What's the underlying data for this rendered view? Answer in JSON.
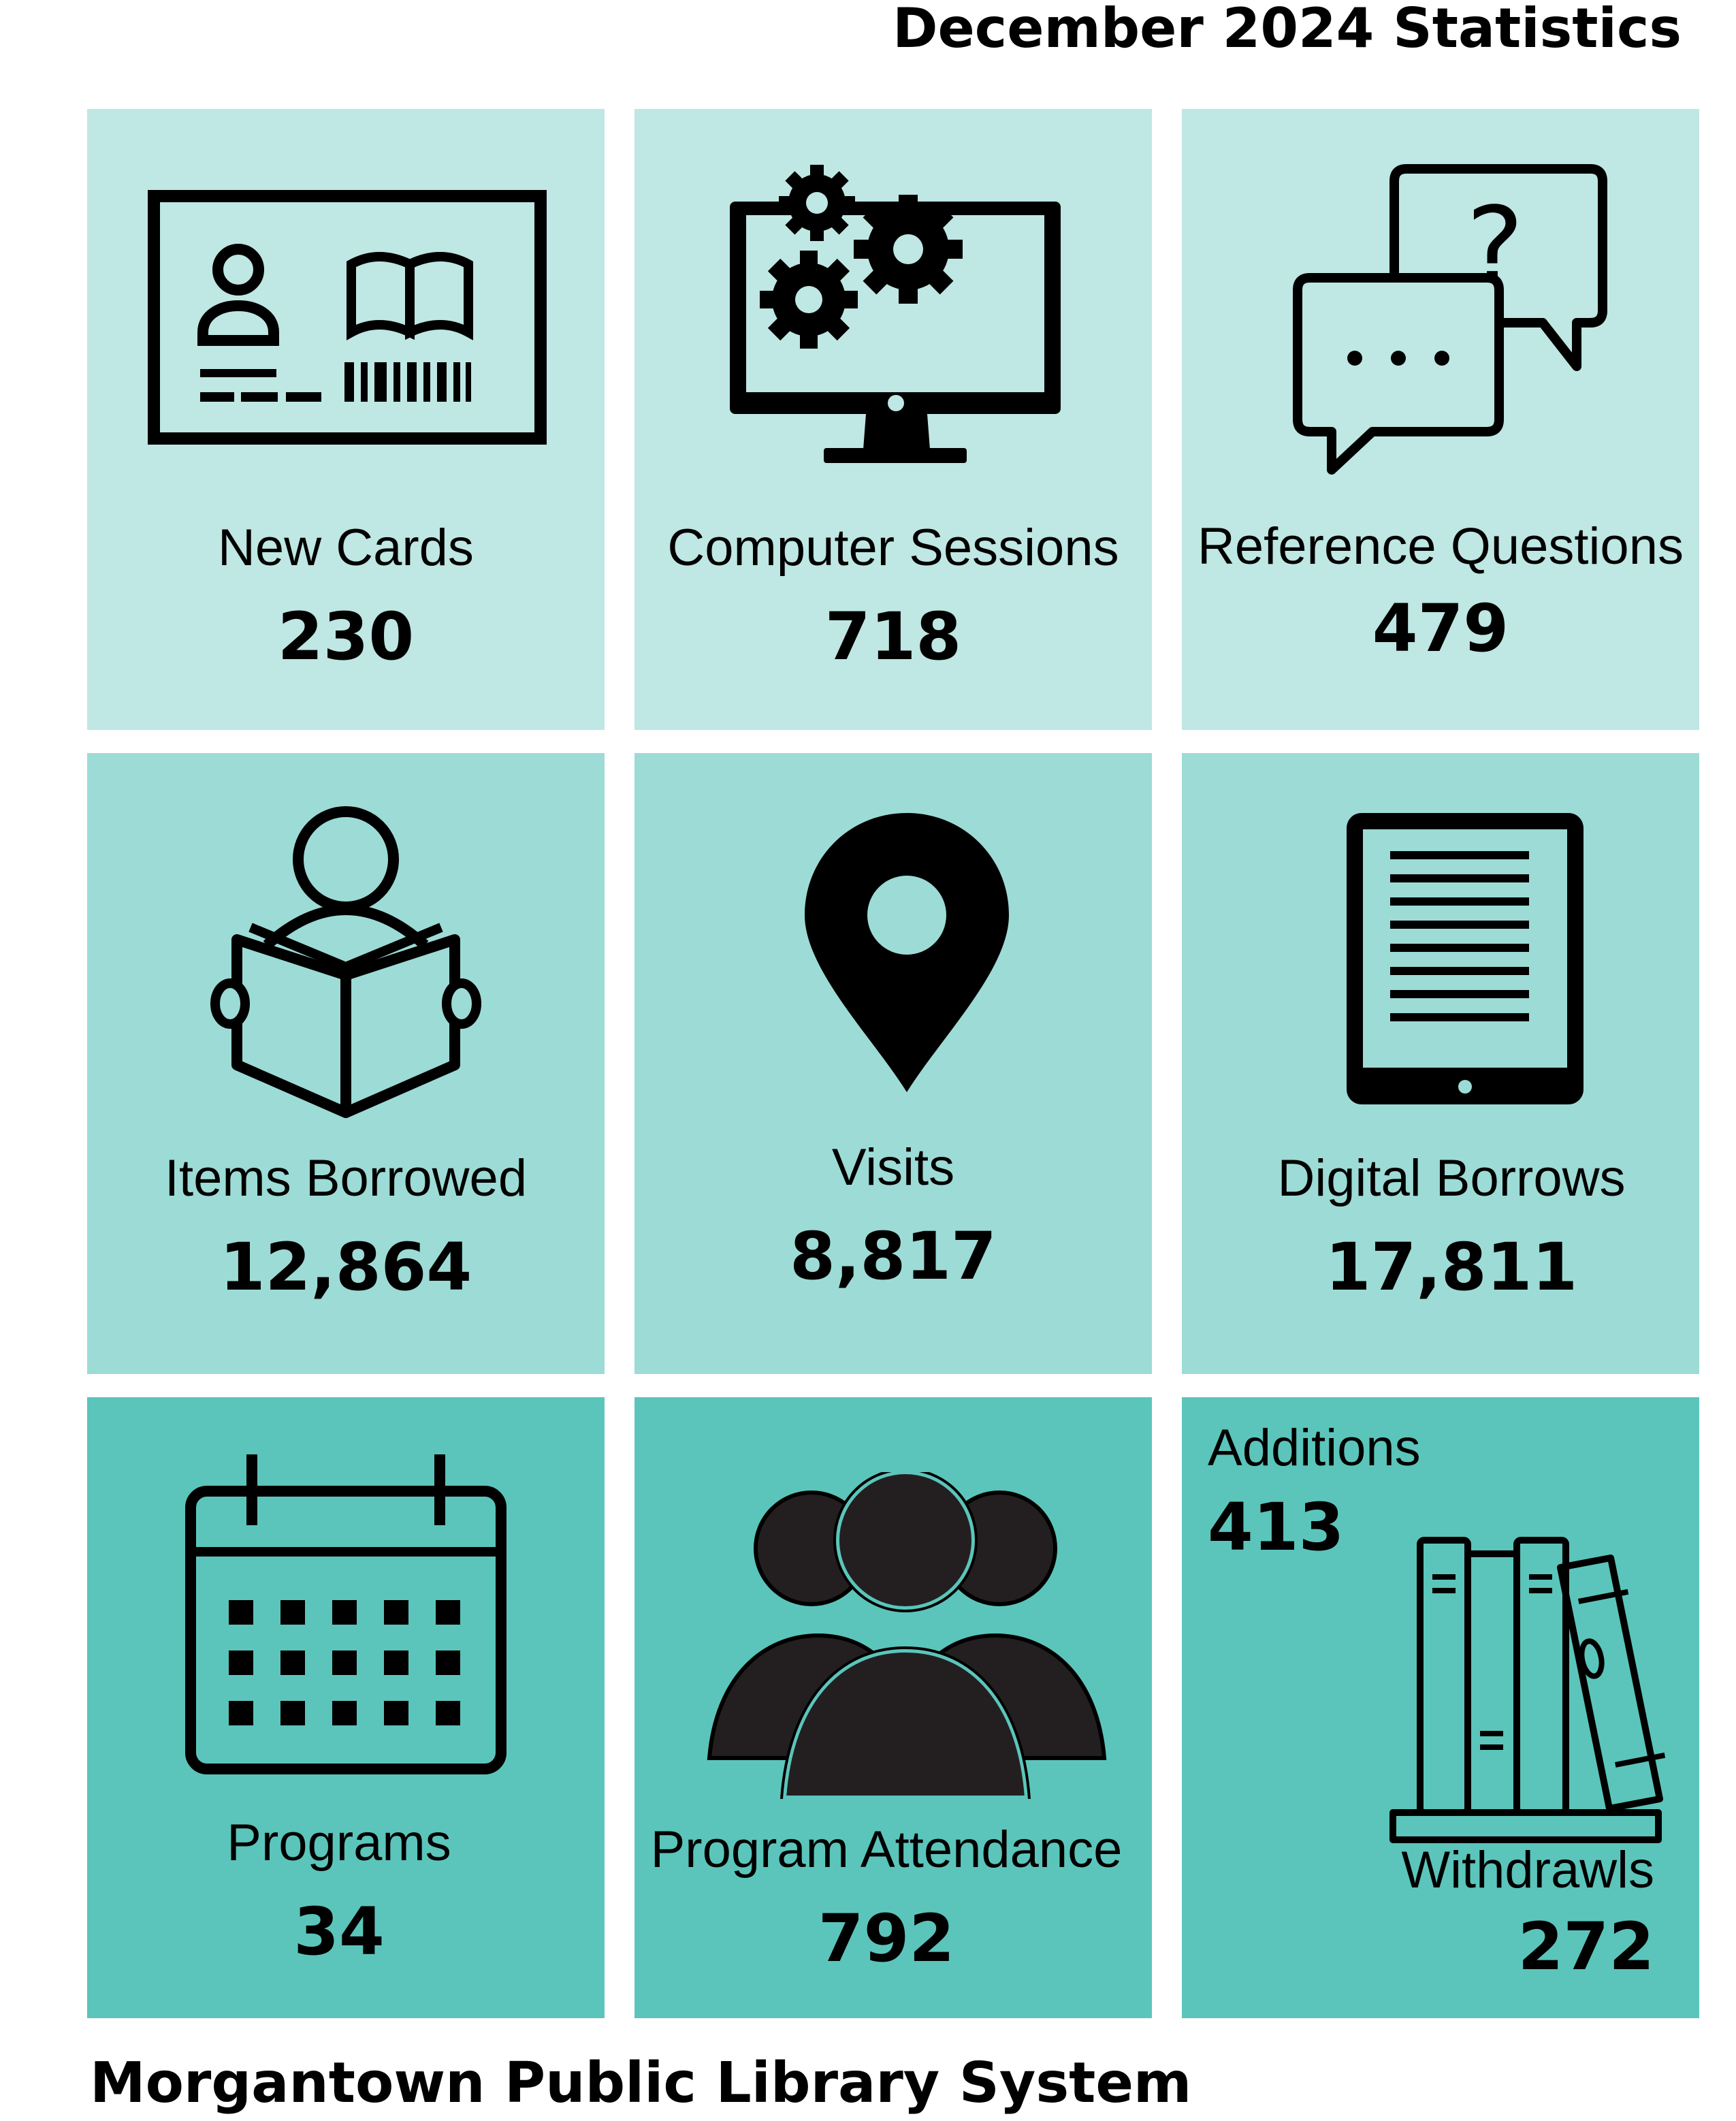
{
  "header": {
    "title": "December 2024 Statistics"
  },
  "footer": {
    "organization": "Morgantown Public Library System"
  },
  "tiles": [
    {
      "label": "New Cards",
      "value": "230",
      "icon": "library-card-icon"
    },
    {
      "label": "Computer Sessions",
      "value": "718",
      "icon": "computer-gears-icon"
    },
    {
      "label": "Reference Questions",
      "value": "479",
      "icon": "chat-question-icon"
    },
    {
      "label": "Items Borrowed",
      "value": "12,864",
      "icon": "person-reading-icon"
    },
    {
      "label": "Visits",
      "value": "8,817",
      "icon": "map-pin-icon"
    },
    {
      "label": "Digital Borrows",
      "value": "17,811",
      "icon": "ereader-icon"
    },
    {
      "label": "Programs",
      "value": "34",
      "icon": "calendar-icon"
    },
    {
      "label": "Program Attendance",
      "value": "792",
      "icon": "group-people-icon"
    }
  ],
  "collection": {
    "additions_label": "Additions",
    "additions_value": "413",
    "withdrawals_label": "Withdrawls",
    "withdrawals_value": "272",
    "icon": "books-shelf-icon"
  },
  "colors": {
    "row1_bg": "#bfe7e3",
    "row2_bg": "#9ddbd6",
    "row3_bg": "#5bc5bb",
    "icon": "#000000"
  }
}
